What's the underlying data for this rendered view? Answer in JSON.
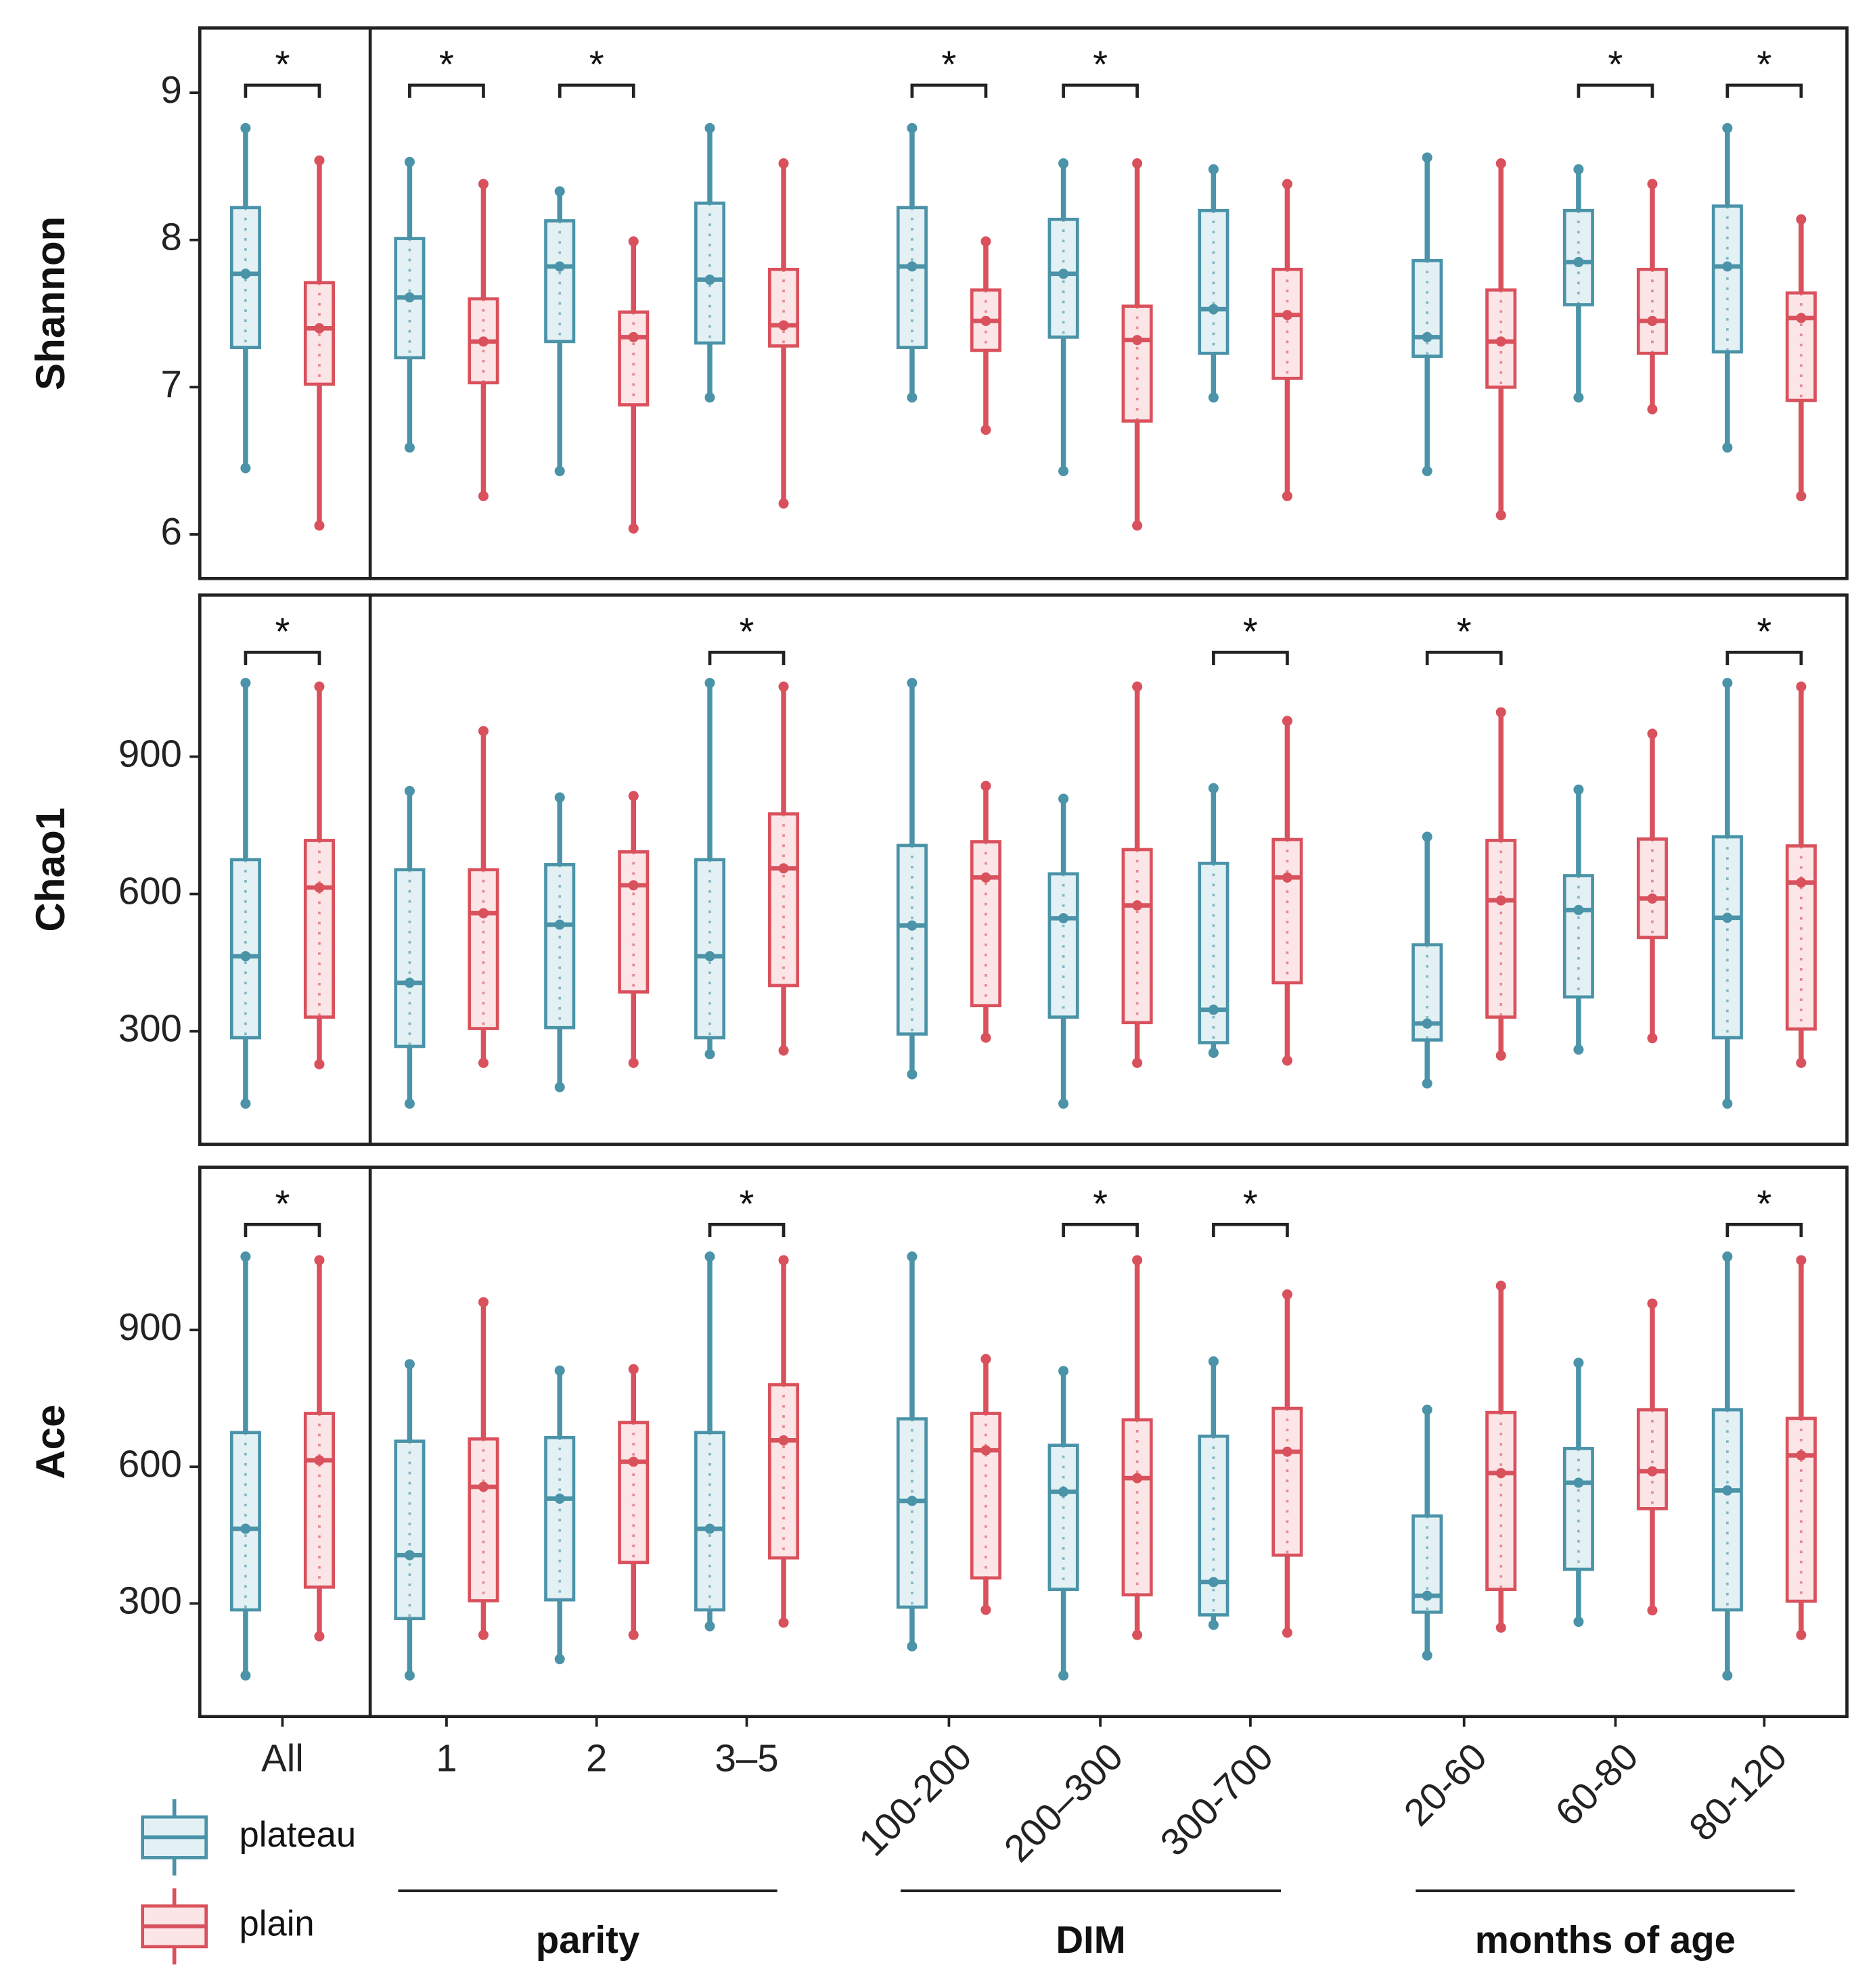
{
  "chart_data": [
    {
      "type": "box",
      "ylabel": "Shannon",
      "ylim": [
        5.7,
        9.44
      ],
      "yticks": [
        6,
        7,
        8,
        9
      ],
      "series": [
        {
          "name": "plateau",
          "color": "#4a93a8",
          "fill": "#e3f1f4",
          "boxes": [
            {
              "min": 6.45,
              "q1": 7.27,
              "median": 7.77,
              "q3": 8.22,
              "max": 8.76
            },
            {
              "min": 6.59,
              "q1": 7.2,
              "median": 7.61,
              "q3": 8.01,
              "max": 8.53
            },
            {
              "min": 6.43,
              "q1": 7.31,
              "median": 7.82,
              "q3": 8.13,
              "max": 8.33
            },
            {
              "min": 6.93,
              "q1": 7.3,
              "median": 7.73,
              "q3": 8.25,
              "max": 8.76
            },
            {
              "min": 6.93,
              "q1": 7.27,
              "median": 7.82,
              "q3": 8.22,
              "max": 8.76
            },
            {
              "min": 6.43,
              "q1": 7.34,
              "median": 7.77,
              "q3": 8.14,
              "max": 8.52
            },
            {
              "min": 6.93,
              "q1": 7.23,
              "median": 7.53,
              "q3": 8.2,
              "max": 8.48
            },
            {
              "min": 6.43,
              "q1": 7.21,
              "median": 7.34,
              "q3": 7.86,
              "max": 8.56
            },
            {
              "min": 6.93,
              "q1": 7.56,
              "median": 7.85,
              "q3": 8.2,
              "max": 8.48
            },
            {
              "min": 6.59,
              "q1": 7.24,
              "median": 7.82,
              "q3": 8.23,
              "max": 8.76
            }
          ]
        },
        {
          "name": "plain",
          "color": "#d9515c",
          "fill": "#fbe5e7",
          "boxes": [
            {
              "min": 6.06,
              "q1": 7.02,
              "median": 7.4,
              "q3": 7.71,
              "max": 8.54
            },
            {
              "min": 6.26,
              "q1": 7.03,
              "median": 7.31,
              "q3": 7.6,
              "max": 8.38
            },
            {
              "min": 6.04,
              "q1": 6.88,
              "median": 7.34,
              "q3": 7.51,
              "max": 7.99
            },
            {
              "min": 6.21,
              "q1": 7.28,
              "median": 7.42,
              "q3": 7.8,
              "max": 8.52
            },
            {
              "min": 6.71,
              "q1": 7.25,
              "median": 7.45,
              "q3": 7.66,
              "max": 7.99
            },
            {
              "min": 6.06,
              "q1": 6.77,
              "median": 7.32,
              "q3": 7.55,
              "max": 8.52
            },
            {
              "min": 6.26,
              "q1": 7.06,
              "median": 7.49,
              "q3": 7.8,
              "max": 8.38
            },
            {
              "min": 6.13,
              "q1": 7.0,
              "median": 7.31,
              "q3": 7.66,
              "max": 8.52
            },
            {
              "min": 6.85,
              "q1": 7.23,
              "median": 7.45,
              "q3": 7.8,
              "max": 8.38
            },
            {
              "min": 6.26,
              "q1": 6.91,
              "median": 7.47,
              "q3": 7.64,
              "max": 8.14
            }
          ]
        }
      ],
      "annotations": [
        {
          "category": 0,
          "label": "*"
        },
        {
          "category": 1,
          "label": "*"
        },
        {
          "category": 2,
          "label": "*"
        },
        {
          "category": 4,
          "label": "*"
        },
        {
          "category": 5,
          "label": "*"
        },
        {
          "category": 8,
          "label": "*"
        },
        {
          "category": 9,
          "label": "*"
        }
      ]
    },
    {
      "type": "box",
      "ylabel": "Chao1",
      "ylim": [
        53,
        1253
      ],
      "yticks": [
        300,
        600,
        900
      ],
      "series": [
        {
          "name": "plateau",
          "color": "#4a93a8",
          "fill": "#e3f1f4",
          "boxes": [
            {
              "min": 142,
              "q1": 286,
              "median": 464,
              "q3": 675,
              "max": 1061
            },
            {
              "min": 142,
              "q1": 267,
              "median": 406,
              "q3": 653,
              "max": 825
            },
            {
              "min": 178,
              "q1": 308,
              "median": 533,
              "q3": 664,
              "max": 811
            },
            {
              "min": 250,
              "q1": 286,
              "median": 464,
              "q3": 675,
              "max": 1061
            },
            {
              "min": 206,
              "q1": 294,
              "median": 531,
              "q3": 706,
              "max": 1061
            },
            {
              "min": 142,
              "q1": 331,
              "median": 547,
              "q3": 644,
              "max": 808
            },
            {
              "min": 253,
              "q1": 275,
              "median": 347,
              "q3": 667,
              "max": 831
            },
            {
              "min": 186,
              "q1": 281,
              "median": 317,
              "q3": 489,
              "max": 725
            },
            {
              "min": 260,
              "q1": 375,
              "median": 565,
              "q3": 640,
              "max": 828
            },
            {
              "min": 142,
              "q1": 286,
              "median": 548,
              "q3": 725,
              "max": 1061
            }
          ]
        },
        {
          "name": "plain",
          "color": "#d9515c",
          "fill": "#fbe5e7",
          "boxes": [
            {
              "min": 228,
              "q1": 331,
              "median": 614,
              "q3": 717,
              "max": 1053
            },
            {
              "min": 231,
              "q1": 306,
              "median": 558,
              "q3": 653,
              "max": 956
            },
            {
              "min": 231,
              "q1": 386,
              "median": 619,
              "q3": 692,
              "max": 814
            },
            {
              "min": 258,
              "q1": 400,
              "median": 656,
              "q3": 775,
              "max": 1053
            },
            {
              "min": 286,
              "q1": 356,
              "median": 636,
              "q3": 714,
              "max": 836
            },
            {
              "min": 231,
              "q1": 319,
              "median": 575,
              "q3": 697,
              "max": 1053
            },
            {
              "min": 236,
              "q1": 406,
              "median": 636,
              "q3": 719,
              "max": 978
            },
            {
              "min": 247,
              "q1": 331,
              "median": 586,
              "q3": 717,
              "max": 997
            },
            {
              "min": 285,
              "q1": 505,
              "median": 590,
              "q3": 720,
              "max": 950
            },
            {
              "min": 231,
              "q1": 305,
              "median": 625,
              "q3": 705,
              "max": 1053
            }
          ]
        }
      ],
      "annotations": [
        {
          "category": 0,
          "label": "*"
        },
        {
          "category": 3,
          "label": "*"
        },
        {
          "category": 6,
          "label": "*"
        },
        {
          "category": 7,
          "label": "*"
        },
        {
          "category": 9,
          "label": "*"
        }
      ]
    },
    {
      "type": "box",
      "ylabel": "Ace",
      "ylim": [
        52,
        1257
      ],
      "yticks": [
        300,
        600,
        900
      ],
      "series": [
        {
          "name": "plateau",
          "color": "#4a93a8",
          "fill": "#e3f1f4",
          "boxes": [
            {
              "min": 142,
              "q1": 286,
              "median": 464,
              "q3": 675,
              "max": 1061
            },
            {
              "min": 142,
              "q1": 267,
              "median": 406,
              "q3": 656,
              "max": 825
            },
            {
              "min": 178,
              "q1": 308,
              "median": 530,
              "q3": 664,
              "max": 811
            },
            {
              "min": 250,
              "q1": 286,
              "median": 464,
              "q3": 675,
              "max": 1061
            },
            {
              "min": 206,
              "q1": 292,
              "median": 525,
              "q3": 705,
              "max": 1061
            },
            {
              "min": 142,
              "q1": 331,
              "median": 545,
              "q3": 647,
              "max": 810
            },
            {
              "min": 253,
              "q1": 275,
              "median": 347,
              "q3": 667,
              "max": 831
            },
            {
              "min": 186,
              "q1": 281,
              "median": 317,
              "q3": 492,
              "max": 725
            },
            {
              "min": 260,
              "q1": 375,
              "median": 565,
              "q3": 640,
              "max": 828
            },
            {
              "min": 142,
              "q1": 286,
              "median": 548,
              "q3": 725,
              "max": 1061
            }
          ]
        },
        {
          "name": "plain",
          "color": "#d9515c",
          "fill": "#fbe5e7",
          "boxes": [
            {
              "min": 228,
              "q1": 336,
              "median": 614,
              "q3": 717,
              "max": 1053
            },
            {
              "min": 231,
              "q1": 306,
              "median": 556,
              "q3": 661,
              "max": 961
            },
            {
              "min": 231,
              "q1": 390,
              "median": 611,
              "q3": 697,
              "max": 814
            },
            {
              "min": 258,
              "q1": 400,
              "median": 658,
              "q3": 780,
              "max": 1053
            },
            {
              "min": 286,
              "q1": 356,
              "median": 636,
              "q3": 717,
              "max": 836
            },
            {
              "min": 231,
              "q1": 319,
              "median": 575,
              "q3": 703,
              "max": 1053
            },
            {
              "min": 236,
              "q1": 406,
              "median": 633,
              "q3": 728,
              "max": 978
            },
            {
              "min": 247,
              "q1": 331,
              "median": 586,
              "q3": 719,
              "max": 997
            },
            {
              "min": 285,
              "q1": 508,
              "median": 590,
              "q3": 725,
              "max": 958
            },
            {
              "min": 231,
              "q1": 305,
              "median": 625,
              "q3": 706,
              "max": 1053
            }
          ]
        }
      ],
      "annotations": [
        {
          "category": 0,
          "label": "*"
        },
        {
          "category": 3,
          "label": "*"
        },
        {
          "category": 5,
          "label": "*"
        },
        {
          "category": 6,
          "label": "*"
        },
        {
          "category": 9,
          "label": "*"
        }
      ]
    }
  ],
  "categories": [
    "All",
    "1",
    "2",
    "3–5",
    "100-200",
    "200–300",
    "300-700",
    "20-60",
    "60-80",
    "80-120"
  ],
  "groups": [
    {
      "label": "parity",
      "from": 1,
      "to": 3
    },
    {
      "label": "DIM",
      "from": 4,
      "to": 6
    },
    {
      "label": "months of age",
      "from": 7,
      "to": 9
    }
  ]
}
